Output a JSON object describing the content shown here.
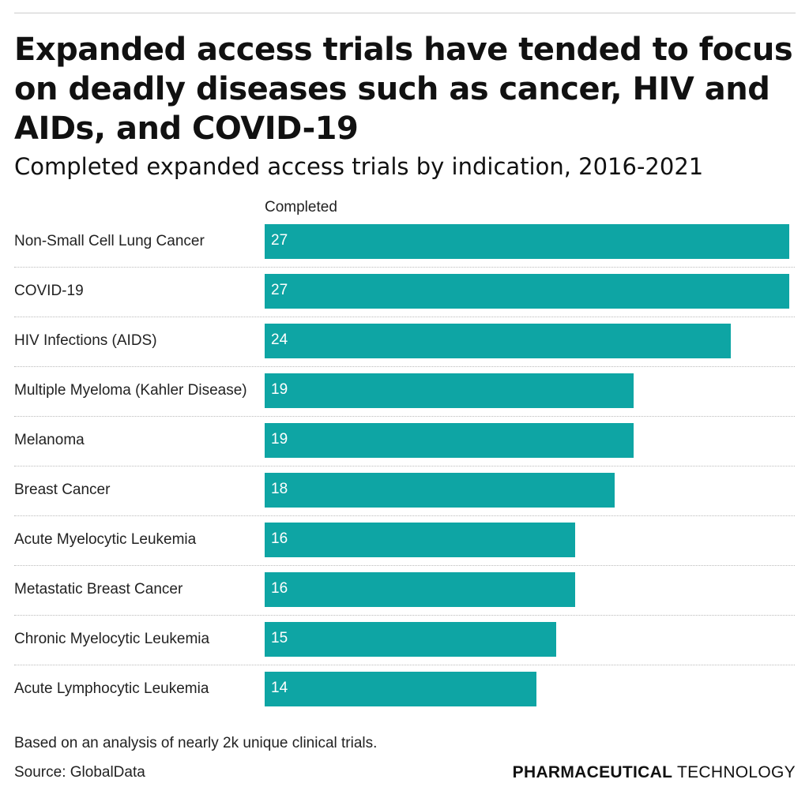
{
  "title": "Expanded access trials have tended to focus on deadly diseases such as cancer, HIV and AIDs, and COVID-19",
  "subtitle": "Completed expanded access trials by indication, 2016-2021",
  "footnote": "Based on an analysis of nearly 2k unique clinical trials.",
  "source": "Source: GlobalData",
  "logo": {
    "bold": "PHARMACEUTICAL",
    "light": "TECHNOLOGY"
  },
  "chart_data": {
    "type": "bar",
    "orientation": "horizontal",
    "column_header": "Completed",
    "categories": [
      "Non-Small Cell Lung Cancer",
      "COVID-19",
      "HIV Infections (AIDS)",
      "Multiple Myeloma (Kahler Disease)",
      "Melanoma",
      "Breast Cancer",
      "Acute Myelocytic Leukemia",
      "Metastatic Breast Cancer",
      "Chronic Myelocytic Leukemia",
      "Acute Lymphocytic Leukemia"
    ],
    "series": [
      {
        "name": "Completed",
        "values": [
          27,
          27,
          24,
          19,
          19,
          18,
          16,
          16,
          15,
          14
        ]
      }
    ],
    "xlim": [
      0,
      27
    ],
    "color": "#0ea5a4",
    "grid": false
  }
}
